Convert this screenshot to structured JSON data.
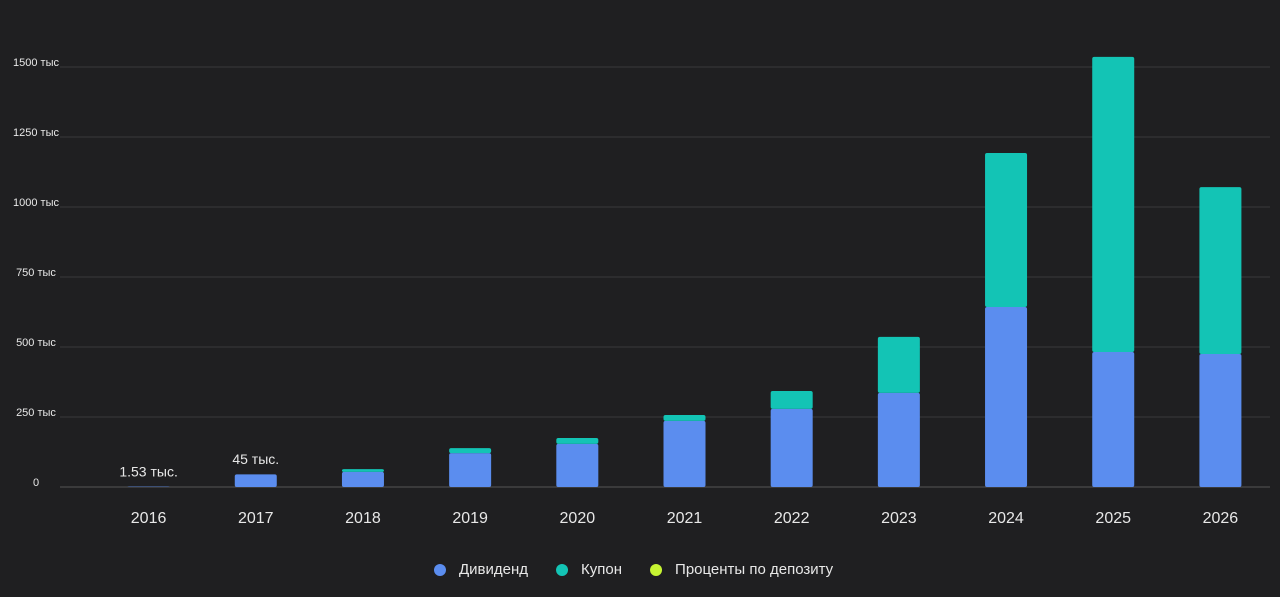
{
  "chart_data": {
    "type": "stacked_bar",
    "categories": [
      "2016",
      "2017",
      "2018",
      "2019",
      "2020",
      "2021",
      "2022",
      "2023",
      "2024",
      "2025",
      "2026"
    ],
    "series": [
      {
        "name": "Дивиденд",
        "color": "#5b8def",
        "values": [
          1.53,
          45,
          54,
          121,
          154,
          236,
          279,
          336,
          643,
          482,
          475
        ],
        "value_labels": [
          "1.53 тыс.",
          "45 тыс.",
          null,
          null,
          null,
          null,
          null,
          null,
          null,
          null,
          null
        ]
      },
      {
        "name": "Купон",
        "color": "#13c4b5",
        "values": [
          0,
          0,
          10,
          18,
          21,
          21,
          64,
          200,
          550,
          1054,
          596
        ]
      },
      {
        "name": "Проценты по депозиту",
        "color": "#c6f432",
        "values": [
          0,
          0,
          0,
          0,
          0,
          0,
          0,
          0,
          0,
          0,
          0
        ]
      }
    ],
    "ylim": [
      0,
      1500
    ],
    "yticks": [
      0,
      {
        "value": 250,
        "label": "250 тыс"
      },
      {
        "value": 500,
        "label": "500 тыс"
      },
      {
        "value": 750,
        "label": "750 тыс"
      },
      {
        "value": 1000,
        "label": "1000 тыс"
      },
      {
        "value": 1250,
        "label": "1250 тыс"
      },
      {
        "value": 1500,
        "label": "1500 тыс"
      }
    ],
    "grid": true,
    "legend": "bottom"
  }
}
